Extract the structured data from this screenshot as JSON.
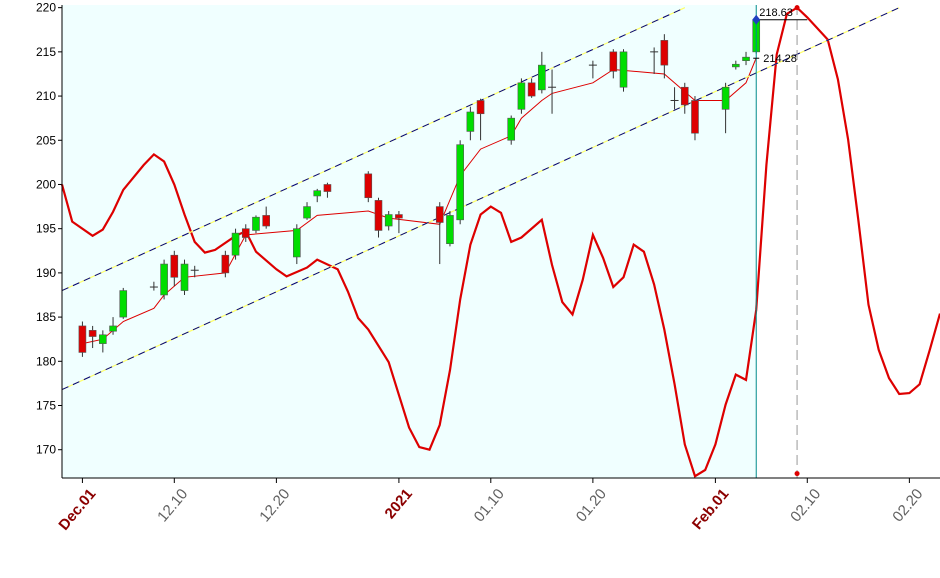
{
  "chart_data": {
    "type": "candlestick",
    "xlim": [
      "11.29",
      "02.23"
    ],
    "ylim": [
      166.8,
      220.3
    ],
    "yticks": [
      170,
      175,
      180,
      185,
      190,
      195,
      200,
      205,
      210,
      215,
      220
    ],
    "xticks": [
      {
        "value": "12.01",
        "label": "Dec.01",
        "color": "#8b0000"
      },
      {
        "value": "12.10",
        "label": "12.10",
        "color": "#606060"
      },
      {
        "value": "12.20",
        "label": "12.20",
        "color": "#606060"
      },
      {
        "value": "01.01",
        "label": "2021",
        "color": "#8b0000"
      },
      {
        "value": "01.10",
        "label": "01.10",
        "color": "#606060"
      },
      {
        "value": "01.20",
        "label": "01.20",
        "color": "#606060"
      },
      {
        "value": "02.01",
        "label": "Feb.01",
        "color": "#8b0000"
      },
      {
        "value": "02.10",
        "label": "02.10",
        "color": "#606060"
      },
      {
        "value": "02.20",
        "label": "02.20",
        "color": "#606060"
      }
    ],
    "plot_background": "#f0ffff",
    "up_color": "#00dd00",
    "down_color": "#dd0000",
    "candles": {
      "x": [
        "12.01",
        "12.02",
        "12.03",
        "12.04",
        "12.05",
        "12.08",
        "12.09",
        "12.10",
        "12.11",
        "12.12",
        "12.15",
        "12.16",
        "12.17",
        "12.18",
        "12.19",
        "12.22",
        "12.23",
        "12.24",
        "12.25",
        "12.29",
        "12.30",
        "12.31",
        "01.01",
        "01.05",
        "01.06",
        "01.07",
        "01.08",
        "01.09",
        "01.12",
        "01.13",
        "01.14",
        "01.15",
        "01.16",
        "01.20",
        "01.22",
        "01.23",
        "01.26",
        "01.27",
        "01.28",
        "01.29",
        "01.30",
        "02.02",
        "02.03",
        "02.04",
        "02.05"
      ],
      "open": [
        184,
        183.5,
        182,
        183.4,
        185,
        188.4,
        187.5,
        192,
        188,
        190.3,
        192,
        192,
        195,
        194.8,
        196.5,
        191.8,
        196.2,
        198.7,
        200,
        201.2,
        198.2,
        195.3,
        196.6,
        197.5,
        193.3,
        196,
        206,
        209.5,
        205,
        208.5,
        211.5,
        210.7,
        211,
        213.5,
        215,
        211,
        215,
        216.3,
        209.5,
        211,
        209.5,
        208.5,
        213.3,
        214,
        215
      ],
      "high": [
        184.5,
        184,
        183.5,
        185,
        188.3,
        189,
        191.5,
        192.5,
        191.5,
        190.8,
        192.5,
        195,
        195.5,
        196.5,
        197.5,
        195.5,
        198,
        199.5,
        200.2,
        201.5,
        198.5,
        197,
        197,
        198,
        197,
        205,
        208.8,
        209.7,
        207.8,
        212,
        212,
        215,
        213,
        214,
        215.3,
        215.3,
        215.5,
        217,
        211,
        211.5,
        210,
        211.5,
        214,
        215,
        218.7
      ],
      "low": [
        180.5,
        181.5,
        181,
        183,
        184.8,
        188,
        187,
        188.5,
        187.5,
        189.5,
        189.5,
        191.5,
        193.5,
        194.5,
        195,
        191,
        196,
        198,
        198.5,
        198,
        194,
        194.8,
        194.5,
        191,
        193,
        195.5,
        205,
        205,
        204.5,
        208,
        209.8,
        210.3,
        208,
        212,
        212,
        210.5,
        212.5,
        212,
        208.5,
        208,
        205,
        205.8,
        213,
        213.5,
        214.8
      ],
      "close": [
        181,
        182.8,
        183,
        184,
        188,
        188.4,
        191,
        189.5,
        191,
        190.3,
        190,
        194.5,
        194,
        196.3,
        195.3,
        195,
        197.5,
        199.3,
        199.2,
        198.5,
        194.8,
        196.6,
        196.2,
        195.7,
        196.5,
        204.5,
        208.2,
        208,
        207.5,
        211.5,
        210,
        213.5,
        211,
        213.5,
        212.8,
        215,
        215,
        213.5,
        209.5,
        209,
        205.8,
        211,
        213.6,
        214.4,
        218.6
      ]
    },
    "series": [
      {
        "name": "MA",
        "color": "#dd0000",
        "width": 1,
        "x": [
          "12.01",
          "12.03",
          "12.05",
          "12.08",
          "12.09",
          "12.11",
          "12.15",
          "12.17",
          "12.22",
          "12.24",
          "12.29",
          "12.31",
          "01.05",
          "01.07",
          "01.09",
          "01.12",
          "01.13",
          "01.15",
          "01.16",
          "01.20",
          "01.22",
          "01.27",
          "01.30",
          "02.02",
          "02.04",
          "02.05"
        ],
        "values": [
          182,
          182.5,
          184.5,
          186,
          187.5,
          189.5,
          190,
          194.3,
          194.8,
          196.5,
          197,
          196.2,
          195.5,
          201,
          204,
          205.5,
          207.5,
          209.5,
          210.3,
          211.5,
          213,
          212.5,
          209.5,
          209.5,
          211.5,
          214.3
        ]
      },
      {
        "name": "Oscillator",
        "color": "#dd0000",
        "width": 2.2,
        "x": [
          "11.29",
          "11.30",
          "12.02",
          "12.03",
          "12.04",
          "12.05",
          "12.07",
          "12.08",
          "12.09",
          "12.10",
          "12.11",
          "12.12",
          "12.13",
          "12.14",
          "12.16",
          "12.17",
          "12.18",
          "12.20",
          "12.21",
          "12.23",
          "12.24",
          "12.26",
          "12.27",
          "12.28",
          "12.29",
          "12.31",
          "01.01",
          "01.02",
          "01.03",
          "01.04",
          "01.05",
          "01.06",
          "01.07",
          "01.08",
          "01.09",
          "01.10",
          "01.11",
          "01.12",
          "01.13",
          "01.15",
          "01.16",
          "01.17",
          "01.18",
          "01.19",
          "01.20",
          "01.21",
          "01.22",
          "01.23",
          "01.24",
          "01.25",
          "01.26",
          "01.27",
          "01.28",
          "01.29",
          "01.30",
          "01.31",
          "02.01",
          "02.02",
          "02.03",
          "02.04",
          "02.05",
          "02.06",
          "02.07",
          "02.08",
          "02.09",
          "02.10",
          "02.12",
          "02.13",
          "02.14",
          "02.15",
          "02.16",
          "02.17",
          "02.18",
          "02.19",
          "02.20",
          "02.21",
          "02.22",
          "02.23"
        ],
        "values": [
          200,
          195.8,
          194.2,
          194.9,
          196.9,
          199.4,
          202.2,
          203.4,
          202.6,
          200,
          196.6,
          193.5,
          192.3,
          192.6,
          194.2,
          194.7,
          192.4,
          190.4,
          189.6,
          190.6,
          191.5,
          190.4,
          187.9,
          184.9,
          183.6,
          179.9,
          176.2,
          172.5,
          170.3,
          170,
          172.8,
          179,
          187,
          193.2,
          196.6,
          197.5,
          196.8,
          193.5,
          194,
          196,
          190.9,
          186.7,
          185.3,
          189.2,
          194.3,
          191.7,
          188.4,
          189.5,
          193.2,
          192.4,
          188.7,
          183.6,
          177.4,
          170.6,
          167,
          167.7,
          170.6,
          175.1,
          178.5,
          177.9,
          185.8,
          202.2,
          214.7,
          219.3,
          220,
          218.9,
          216.4,
          211.9,
          205.1,
          196,
          186.4,
          181.3,
          178.1,
          176.3,
          176.4,
          177.4,
          181.3,
          185.4
        ]
      },
      {
        "name": "Upper channel",
        "color": "#000080",
        "width": 1,
        "dash": true,
        "x": [
          "11.29",
          "01.29"
        ],
        "values": [
          188,
          220
        ]
      },
      {
        "name": "Lower channel",
        "color": "#000080",
        "width": 1,
        "dash": true,
        "x": [
          "11.29",
          "02.19"
        ],
        "values": [
          176.8,
          220
        ]
      }
    ],
    "markers": {
      "current_x": "02.05",
      "current_color": "#008b8b",
      "projection_x": "02.09",
      "projection_values": [
        220,
        167.3
      ],
      "projection_color": "#dd0000",
      "level_value": 218.63,
      "level_label": "218.63",
      "level_end_x": "02.10",
      "level_color": "#1f3fbf",
      "second_value": 214.28,
      "second_label": "214.28"
    }
  }
}
